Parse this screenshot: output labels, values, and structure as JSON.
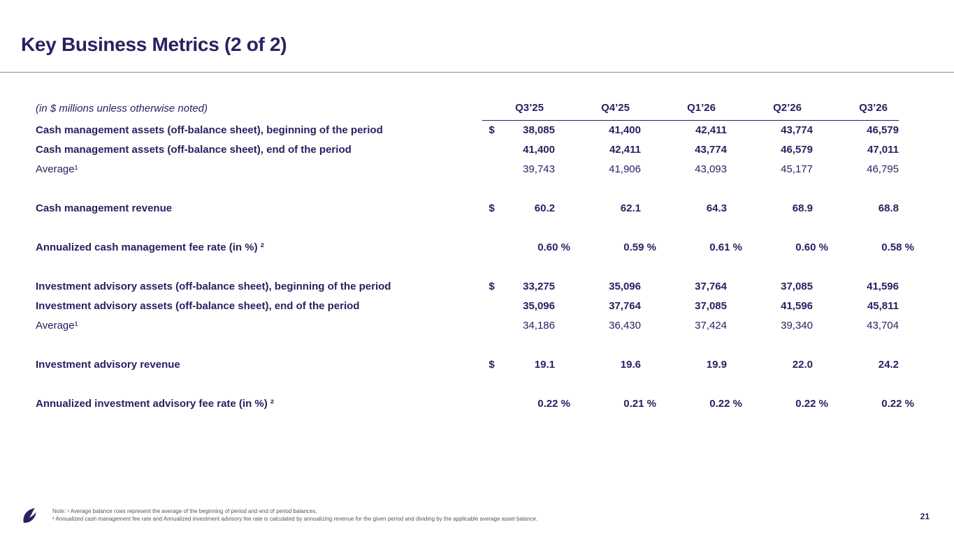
{
  "slide": {
    "title": "Key Business Metrics (2 of 2)",
    "page_number": "21"
  },
  "table": {
    "unit_note": "(in $ millions unless otherwise noted)",
    "columns": [
      "Q3’25",
      "Q4’25",
      "Q1’26",
      "Q2’26",
      "Q3’26"
    ],
    "rows": [
      {
        "label": "Cash management assets (off-balance sheet), beginning of the period",
        "currency": "$",
        "values": [
          "38,085",
          "41,400",
          "42,411",
          "43,774",
          "46,579"
        ],
        "bold": true,
        "spacer_before": false,
        "pct": false
      },
      {
        "label": "Cash management assets (off-balance sheet), end of the period",
        "currency": "",
        "values": [
          "41,400",
          "42,411",
          "43,774",
          "46,579",
          "47,011"
        ],
        "bold": true,
        "spacer_before": false,
        "pct": false
      },
      {
        "label": "Average¹",
        "currency": "",
        "values": [
          "39,743",
          "41,906",
          "43,093",
          "45,177",
          "46,795"
        ],
        "bold": false,
        "spacer_before": false,
        "pct": false
      },
      {
        "label": "Cash management revenue",
        "currency": "$",
        "values": [
          "60.2",
          "62.1",
          "64.3",
          "68.9",
          "68.8"
        ],
        "bold": true,
        "spacer_before": true,
        "pct": false
      },
      {
        "label": "Annualized cash management fee rate (in %) ²",
        "currency": "",
        "values": [
          "0.60 %",
          "0.59 %",
          "0.61 %",
          "0.60 %",
          "0.58 %"
        ],
        "bold": true,
        "spacer_before": true,
        "pct": true
      },
      {
        "label": "Investment advisory assets (off-balance sheet), beginning of the period",
        "currency": "$",
        "values": [
          "33,275",
          "35,096",
          "37,764",
          "37,085",
          "41,596"
        ],
        "bold": true,
        "spacer_before": true,
        "pct": false
      },
      {
        "label": "Investment advisory assets (off-balance sheet), end of the period",
        "currency": "",
        "values": [
          "35,096",
          "37,764",
          "37,085",
          "41,596",
          "45,811"
        ],
        "bold": true,
        "spacer_before": false,
        "pct": false
      },
      {
        "label": "Average¹",
        "currency": "",
        "values": [
          "34,186",
          "36,430",
          "37,424",
          "39,340",
          "43,704"
        ],
        "bold": false,
        "spacer_before": false,
        "pct": false
      },
      {
        "label": "Investment advisory revenue",
        "currency": "$",
        "values": [
          "19.1",
          "19.6",
          "19.9",
          "22.0",
          "24.2"
        ],
        "bold": true,
        "spacer_before": true,
        "pct": false
      },
      {
        "label": "Annualized investment advisory fee rate (in %) ²",
        "currency": "",
        "values": [
          "0.22 %",
          "0.21 %",
          "0.22 %",
          "0.22 %",
          "0.22 %"
        ],
        "bold": true,
        "spacer_before": true,
        "pct": true
      }
    ]
  },
  "footnotes": {
    "line1": "Note: ¹ Average balance rows represent the average of the beginning of period and end of period balances.",
    "line2": "² Annualized cash management fee rate and Annualized investment advisory fee rate is calculated by annualizing revenue for the given period and dividing by the applicable average asset balance."
  },
  "icons": {
    "logo": "company-logo-mark"
  },
  "colors": {
    "primary": "#262262",
    "rule": "#8e8ba8",
    "footnote": "#55565a"
  }
}
